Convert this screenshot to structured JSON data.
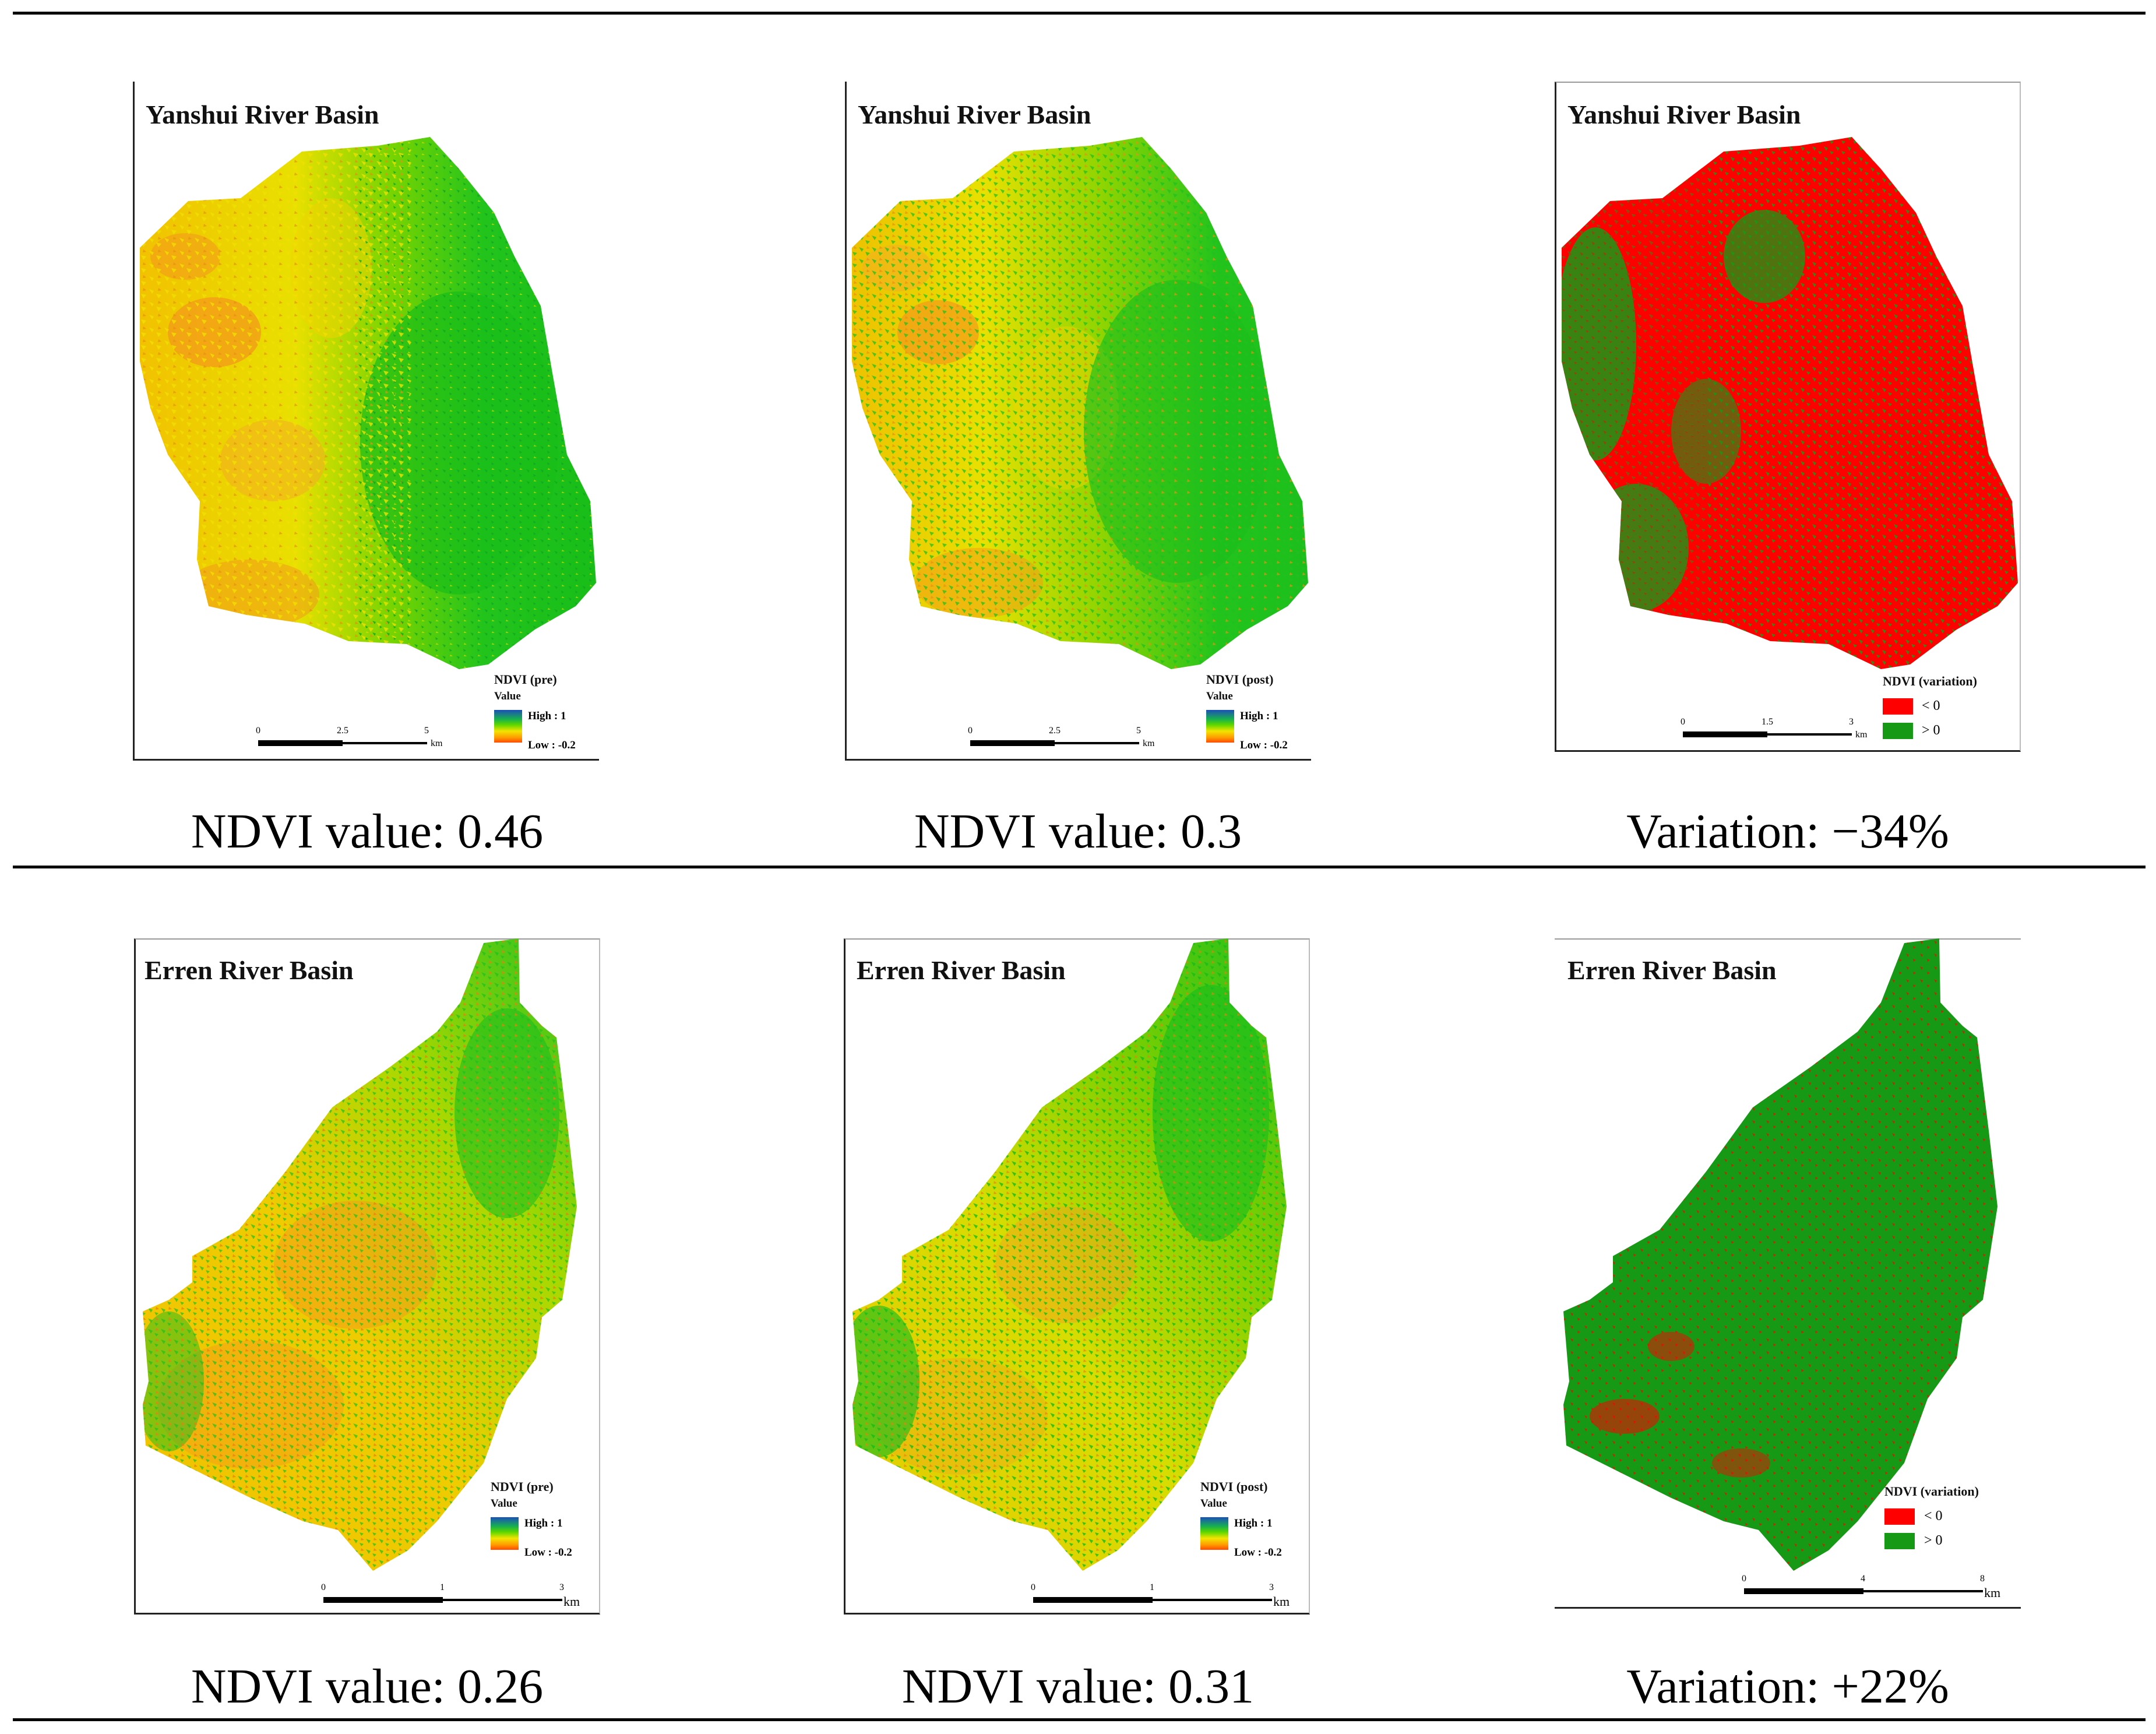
{
  "colors": {
    "green": "#20c020",
    "yellow": "#f2e400",
    "orange": "#f39a1a",
    "red": "#ff0000",
    "dark_green": "#169a16"
  },
  "rows": [
    {
      "panels": [
        {
          "title": "Yanshui River Basin",
          "kind": "ndvi",
          "legend_title": "NDVI (pre)",
          "value_label": "Value",
          "high": "High : 1",
          "low": "Low : -0.2",
          "ticks": [
            "0",
            "2.5",
            "5"
          ],
          "unit": "km",
          "caption": "NDVI value: 0.46"
        },
        {
          "title": "Yanshui River Basin",
          "kind": "ndvi",
          "legend_title": "NDVI (post)",
          "value_label": "Value",
          "high": "High : 1",
          "low": "Low : -0.2",
          "ticks": [
            "0",
            "2.5",
            "5"
          ],
          "unit": "km",
          "caption": "NDVI value: 0.3"
        },
        {
          "title": "Yanshui River Basin",
          "kind": "variation",
          "legend_title": "NDVI (variation)",
          "neg": "< 0",
          "pos": "> 0",
          "ticks": [
            "0",
            "1.5",
            "3"
          ],
          "unit": "km",
          "caption": "Variation: −34%"
        }
      ]
    },
    {
      "panels": [
        {
          "title": "Erren River Basin",
          "kind": "ndvi",
          "legend_title": "NDVI (pre)",
          "value_label": "Value",
          "high": "High : 1",
          "low": "Low : -0.2",
          "ticks": [
            "0",
            "1",
            "3"
          ],
          "unit": "km",
          "caption": "NDVI value: 0.26"
        },
        {
          "title": "Erren River Basin",
          "kind": "ndvi",
          "legend_title": "NDVI (post)",
          "value_label": "Value",
          "high": "High : 1",
          "low": "Low : -0.2",
          "ticks": [
            "0",
            "1",
            "3"
          ],
          "unit": "km",
          "caption": "NDVI value: 0.31"
        },
        {
          "title": "Erren River Basin",
          "kind": "variation",
          "legend_title": "NDVI (variation)",
          "neg": "< 0",
          "pos": "> 0",
          "ticks": [
            "0",
            "4",
            "8"
          ],
          "unit": "km",
          "caption": "Variation: +22%"
        }
      ]
    }
  ]
}
